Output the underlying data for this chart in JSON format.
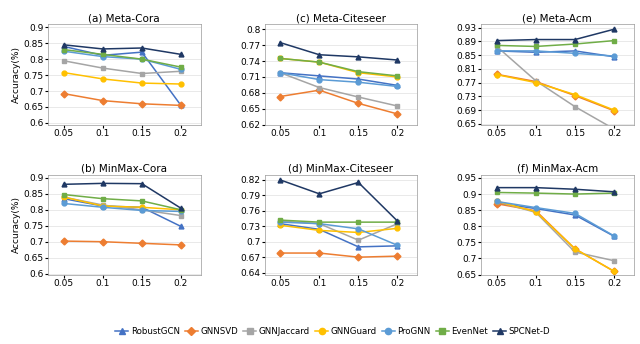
{
  "x": [
    0.05,
    0.1,
    0.15,
    0.2
  ],
  "series": {
    "RobustGCN": {
      "color": "#4472C4",
      "marker": "^",
      "data": {
        "a": [
          0.84,
          0.812,
          0.822,
          0.655
        ],
        "b": [
          0.835,
          0.812,
          0.808,
          0.748
        ],
        "c": [
          0.718,
          0.712,
          0.706,
          0.694
        ],
        "d": [
          0.735,
          0.724,
          0.69,
          0.692
        ],
        "e": [
          0.862,
          0.858,
          0.862,
          0.845
        ],
        "f": [
          0.872,
          0.855,
          0.835,
          0.769
        ]
      }
    },
    "GNNSVD": {
      "color": "#ED7D31",
      "marker": "D",
      "data": {
        "a": [
          0.692,
          0.67,
          0.66,
          0.655
        ],
        "b": [
          0.702,
          0.7,
          0.695,
          0.69
        ],
        "c": [
          0.673,
          0.685,
          0.66,
          0.64
        ],
        "d": [
          0.678,
          0.678,
          0.67,
          0.672
        ],
        "e": [
          0.794,
          0.773,
          0.732,
          0.688
        ],
        "f": [
          0.87,
          0.848,
          0.73,
          0.66
        ]
      }
    },
    "GNNJaccard": {
      "color": "#A5A5A5",
      "marker": "s",
      "data": {
        "a": [
          0.795,
          0.772,
          0.755,
          0.762
        ],
        "b": [
          0.84,
          0.815,
          0.8,
          0.782
        ],
        "c": [
          0.718,
          0.69,
          0.672,
          0.655
        ],
        "d": [
          0.74,
          0.735,
          0.703,
          0.735
        ],
        "e": [
          0.875,
          0.775,
          0.7,
          0.635
        ],
        "f": [
          0.877,
          0.843,
          0.72,
          0.693
        ]
      }
    },
    "GNNGuard": {
      "color": "#FFC000",
      "marker": "o",
      "data": {
        "a": [
          0.758,
          0.738,
          0.725,
          0.722
        ],
        "b": [
          0.84,
          0.812,
          0.808,
          0.8
        ],
        "c": [
          0.745,
          0.738,
          0.718,
          0.71
        ],
        "d": [
          0.732,
          0.722,
          0.718,
          0.726
        ],
        "e": [
          0.793,
          0.77,
          0.735,
          0.69
        ],
        "f": [
          0.878,
          0.845,
          0.73,
          0.66
        ]
      }
    },
    "ProGNN": {
      "color": "#5B9BD5",
      "marker": "o",
      "data": {
        "a": [
          0.825,
          0.808,
          0.8,
          0.768
        ],
        "b": [
          0.82,
          0.808,
          0.798,
          0.795
        ],
        "c": [
          0.718,
          0.705,
          0.7,
          0.692
        ],
        "d": [
          0.738,
          0.735,
          0.725,
          0.693
        ],
        "e": [
          0.862,
          0.862,
          0.855,
          0.847
        ],
        "f": [
          0.877,
          0.858,
          0.84,
          0.77
        ]
      }
    },
    "EvenNet": {
      "color": "#70AD47",
      "marker": "s",
      "data": {
        "a": [
          0.83,
          0.815,
          0.8,
          0.775
        ],
        "b": [
          0.848,
          0.835,
          0.828,
          0.8
        ],
        "c": [
          0.745,
          0.738,
          0.72,
          0.712
        ],
        "d": [
          0.742,
          0.738,
          0.738,
          0.738
        ],
        "e": [
          0.878,
          0.875,
          0.882,
          0.892
        ],
        "f": [
          0.905,
          0.903,
          0.9,
          0.903
        ]
      }
    },
    "SPCNet-D": {
      "color": "#1F3864",
      "marker": "^",
      "data": {
        "a": [
          0.845,
          0.832,
          0.835,
          0.815
        ],
        "b": [
          0.88,
          0.883,
          0.882,
          0.805
        ],
        "c": [
          0.775,
          0.752,
          0.748,
          0.742
        ],
        "d": [
          0.82,
          0.793,
          0.815,
          0.74
        ],
        "e": [
          0.892,
          0.895,
          0.895,
          0.925
        ],
        "f": [
          0.92,
          0.92,
          0.915,
          0.907
        ]
      }
    }
  },
  "ylims": {
    "a": [
      0.595,
      0.91
    ],
    "b": [
      0.595,
      0.91
    ],
    "c": [
      0.62,
      0.81
    ],
    "d": [
      0.635,
      0.83
    ],
    "e": [
      0.648,
      0.94
    ],
    "f": [
      0.648,
      0.96
    ]
  },
  "yticks": {
    "a": [
      0.6,
      0.65,
      0.7,
      0.75,
      0.8,
      0.85,
      0.9
    ],
    "b": [
      0.6,
      0.65,
      0.7,
      0.75,
      0.8,
      0.85,
      0.9
    ],
    "c": [
      0.62,
      0.65,
      0.68,
      0.71,
      0.74,
      0.77,
      0.8
    ],
    "d": [
      0.64,
      0.67,
      0.7,
      0.73,
      0.76,
      0.79,
      0.82
    ],
    "e": [
      0.65,
      0.69,
      0.73,
      0.77,
      0.81,
      0.85,
      0.89,
      0.93
    ],
    "f": [
      0.65,
      0.7,
      0.75,
      0.8,
      0.85,
      0.9,
      0.95
    ]
  },
  "ylabel": "Accuracy(%)",
  "legend_order": [
    "RobustGCN",
    "GNNSVD",
    "GNNJaccard",
    "GNNGuard",
    "ProGNN",
    "EvenNet",
    "SPCNet-D"
  ],
  "titles_map": {
    "a": "(a) Meta-Cora",
    "b": "(b) MinMax-Cora",
    "c": "(c) Meta-Citeseer",
    "d": "(d) MinMax-Citeseer",
    "e": "(e) Meta-Acm",
    "f": "(f) MinMax-Acm"
  },
  "panel_order": [
    "a",
    "b",
    "c",
    "d",
    "e",
    "f"
  ]
}
